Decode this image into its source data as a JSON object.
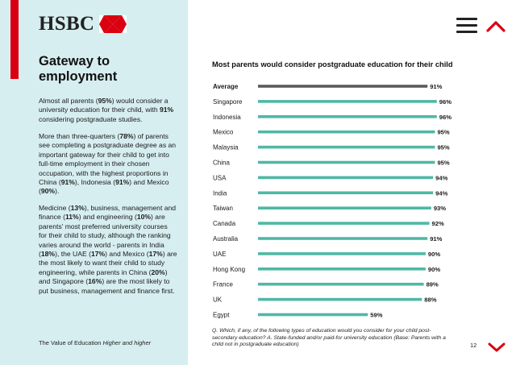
{
  "brand": {
    "name": "HSBC",
    "accent_color": "#db0011",
    "sidebar_color": "#d7eef0"
  },
  "nav": {
    "menu_icon": "hamburger-menu-icon",
    "up_icon": "chevron-up-icon",
    "down_icon": "chevron-down-icon"
  },
  "sidebar": {
    "heading": "Gateway to employment",
    "p1": [
      {
        "t": "Almost all parents ("
      },
      {
        "t": "95%",
        "b": true
      },
      {
        "t": ") would consider a university education for their child, with "
      },
      {
        "t": "91%",
        "b": true
      },
      {
        "t": " considering postgraduate studies."
      }
    ],
    "p2": [
      {
        "t": "More than three-quarters ("
      },
      {
        "t": "78%",
        "b": true
      },
      {
        "t": ") of parents see completing a postgraduate degree as an important gateway for their child to get into full-time employment in their chosen occupation, with the highest proportions in China ("
      },
      {
        "t": "91%",
        "b": true
      },
      {
        "t": "), Indonesia ("
      },
      {
        "t": "91%",
        "b": true
      },
      {
        "t": ") and Mexico ("
      },
      {
        "t": "90%",
        "b": true
      },
      {
        "t": ")."
      }
    ],
    "p3": [
      {
        "t": "Medicine ("
      },
      {
        "t": "13%",
        "b": true
      },
      {
        "t": "), business, management and finance ("
      },
      {
        "t": "11%",
        "b": true
      },
      {
        "t": ") and engineering ("
      },
      {
        "t": "10%",
        "b": true
      },
      {
        "t": ") are parents' most preferred university courses for their child to study, although the ranking varies around the world - parents in India ("
      },
      {
        "t": "18%",
        "b": true
      },
      {
        "t": "), the UAE ("
      },
      {
        "t": "17%",
        "b": true
      },
      {
        "t": ") and Mexico ("
      },
      {
        "t": "17%",
        "b": true
      },
      {
        "t": ") are the most likely to want their child to study engineering, while parents in China ("
      },
      {
        "t": "20%",
        "b": true
      },
      {
        "t": ") and Singapore ("
      },
      {
        "t": "16%",
        "b": true
      },
      {
        "t": ") are the most likely to put business, management and finance first."
      }
    ],
    "footer_prefix": "The Value of Education ",
    "footer_italic": "Higher and higher"
  },
  "chart_data": {
    "type": "bar",
    "orientation": "horizontal",
    "title": "Most parents would consider postgraduate education for their child",
    "categories": [
      "Average",
      "Singapore",
      "Indonesia",
      "Mexico",
      "Malaysia",
      "China",
      "USA",
      "India",
      "Taiwan",
      "Canada",
      "Australia",
      "UAE",
      "Hong Kong",
      "France",
      "UK",
      "Egypt"
    ],
    "values": [
      91,
      96,
      96,
      95,
      95,
      95,
      94,
      94,
      93,
      92,
      91,
      90,
      90,
      89,
      88,
      59
    ],
    "value_labels": [
      "91%",
      "96%",
      "96%",
      "95%",
      "95%",
      "95%",
      "94%",
      "94%",
      "93%",
      "92%",
      "91%",
      "90%",
      "90%",
      "89%",
      "88%",
      "59%"
    ],
    "unit": "%",
    "xlim": [
      0,
      100
    ],
    "colors": {
      "average": "#5a5a5a",
      "countries": "#4fb8a5"
    },
    "grid": false,
    "legend": "none"
  },
  "footnote": "Q. Which, if any, of the following types of education would you consider for your child post-secondary education? A. State-funded and/or paid-for university education (Base: Parents with a child not in postgraduate education)",
  "page_number": "12"
}
